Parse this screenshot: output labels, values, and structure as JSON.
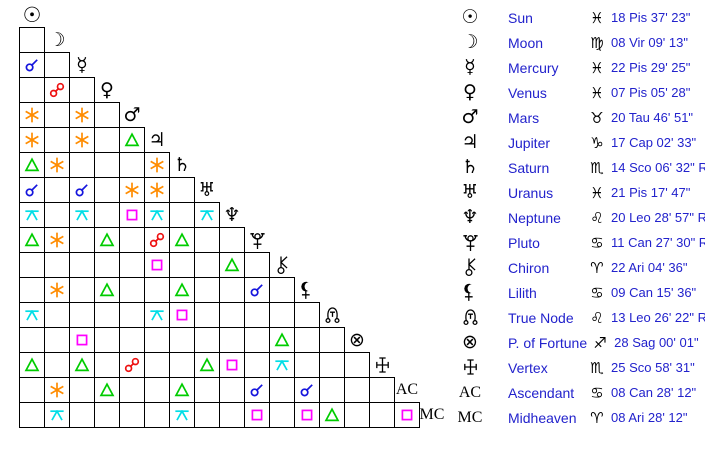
{
  "colors": {
    "conjunction": "#1515dd",
    "opposition": "#ee1111",
    "sextile": "#ff8c00",
    "trine": "#00cc00",
    "square": "#ff00ff",
    "quincunx": "#00dde6",
    "table_text": "#2222cc",
    "glyph": "#000000",
    "grid_line": "#000000"
  },
  "aspect_legend": {
    "c": "conjunction",
    "o": "opposition",
    "sx": "sextile",
    "t": "trine",
    "sq": "square",
    "q": "quincunx"
  },
  "grid": {
    "glyphs": {
      "sun": "☉",
      "moon": "☽",
      "mercury": "☿",
      "venus": "♀",
      "mars": "♂",
      "jupiter": "♃",
      "saturn": "♄",
      "uranus": "♅",
      "neptune": "♆",
      "pluto": null,
      "chiron": null,
      "lilith": null,
      "node": null,
      "fortune": "⊗",
      "vertex": null,
      "ac": "AC",
      "mc": "MC"
    },
    "rows": [
      {
        "planet": "sun",
        "cells": []
      },
      {
        "planet": "moon",
        "cells": [
          null
        ]
      },
      {
        "planet": "mercury",
        "cells": [
          "c",
          null
        ]
      },
      {
        "planet": "venus",
        "cells": [
          null,
          "o",
          null
        ]
      },
      {
        "planet": "mars",
        "cells": [
          "sx",
          null,
          "sx",
          null
        ]
      },
      {
        "planet": "jupiter",
        "cells": [
          "sx",
          null,
          "sx",
          null,
          "t"
        ]
      },
      {
        "planet": "saturn",
        "cells": [
          "t",
          "sx",
          null,
          null,
          null,
          "sx"
        ]
      },
      {
        "planet": "uranus",
        "cells": [
          "c",
          null,
          "c",
          null,
          "sx",
          "sx",
          null
        ]
      },
      {
        "planet": "neptune",
        "cells": [
          "q",
          null,
          "q",
          null,
          "sq",
          "q",
          null,
          "q"
        ]
      },
      {
        "planet": "pluto",
        "cells": [
          "t",
          "sx",
          null,
          "t",
          null,
          "o",
          "t",
          null,
          null
        ]
      },
      {
        "planet": "chiron",
        "cells": [
          null,
          null,
          null,
          null,
          null,
          "sq",
          null,
          null,
          "t",
          null
        ]
      },
      {
        "planet": "lilith",
        "cells": [
          null,
          "sx",
          null,
          "t",
          null,
          null,
          "t",
          null,
          null,
          "c",
          null
        ]
      },
      {
        "planet": "node",
        "cells": [
          "q",
          null,
          null,
          null,
          null,
          "q",
          "sq",
          null,
          null,
          null,
          null,
          null
        ]
      },
      {
        "planet": "fortune",
        "cells": [
          null,
          null,
          "sq",
          null,
          null,
          null,
          null,
          null,
          null,
          null,
          "t",
          null,
          null
        ]
      },
      {
        "planet": "vertex",
        "cells": [
          "t",
          null,
          "t",
          null,
          "o",
          null,
          null,
          "t",
          "sq",
          null,
          "q",
          null,
          null,
          null
        ]
      },
      {
        "planet": "ac",
        "cells": [
          null,
          "sx",
          null,
          "t",
          null,
          null,
          "t",
          null,
          null,
          "c",
          null,
          "c",
          null,
          null,
          null
        ]
      },
      {
        "planet": "mc",
        "cells": [
          null,
          "q",
          null,
          null,
          null,
          null,
          "q",
          null,
          null,
          "sq",
          null,
          "sq",
          "t",
          null,
          null,
          "sq"
        ]
      }
    ]
  },
  "table": {
    "rows": [
      {
        "id": "sun",
        "glyph": "☉",
        "name": "Sun",
        "sign_glyph": "♓",
        "position": "18 Pis 37' 23\""
      },
      {
        "id": "moon",
        "glyph": "☽",
        "name": "Moon",
        "sign_glyph": "♍",
        "position": "08 Vir 09' 13\""
      },
      {
        "id": "mercury",
        "glyph": "☿",
        "name": "Mercury",
        "sign_glyph": "♓",
        "position": "22 Pis 29' 25\""
      },
      {
        "id": "venus",
        "glyph": "♀",
        "name": "Venus",
        "sign_glyph": "♓",
        "position": "07 Pis 05' 28\""
      },
      {
        "id": "mars",
        "glyph": "♂",
        "name": "Mars",
        "sign_glyph": "♉",
        "position": "20 Tau 46' 51\""
      },
      {
        "id": "jupiter",
        "glyph": "♃",
        "name": "Jupiter",
        "sign_glyph": "♑",
        "position": "17 Cap 02' 33\""
      },
      {
        "id": "saturn",
        "glyph": "♄",
        "name": "Saturn",
        "sign_glyph": "♏",
        "position": "14 Sco 06' 32\" R"
      },
      {
        "id": "uranus",
        "glyph": "♅",
        "name": "Uranus",
        "sign_glyph": "♓",
        "position": "21 Pis 17' 47\""
      },
      {
        "id": "neptune",
        "glyph": "♆",
        "name": "Neptune",
        "sign_glyph": "♌",
        "position": "20 Leo 28' 57\" R"
      },
      {
        "id": "pluto",
        "glyph": null,
        "name": "Pluto",
        "sign_glyph": "♋",
        "position": "11 Can 27' 30\" R"
      },
      {
        "id": "chiron",
        "glyph": null,
        "name": "Chiron",
        "sign_glyph": "♈",
        "position": "22 Ari 04' 36\""
      },
      {
        "id": "lilith",
        "glyph": null,
        "name": "Lilith",
        "sign_glyph": "♋",
        "position": "09 Can 15' 36\""
      },
      {
        "id": "node",
        "glyph": null,
        "name": "True Node",
        "sign_glyph": "♌",
        "position": "13 Leo 26' 22\" R"
      },
      {
        "id": "fortune",
        "glyph": "⊗",
        "name": "P. of Fortune",
        "sign_glyph": "♐",
        "position": "28 Sag 00' 01\""
      },
      {
        "id": "vertex",
        "glyph": null,
        "name": "Vertex",
        "sign_glyph": "♏",
        "position": "25 Sco 58' 31\""
      },
      {
        "id": "ac",
        "glyph": "AC",
        "name": "Ascendant",
        "sign_glyph": "♋",
        "position": "08 Can 28' 12\""
      },
      {
        "id": "mc",
        "glyph": "MC",
        "name": "Midheaven",
        "sign_glyph": "♈",
        "position": "08 Ari 28' 12\""
      }
    ]
  }
}
